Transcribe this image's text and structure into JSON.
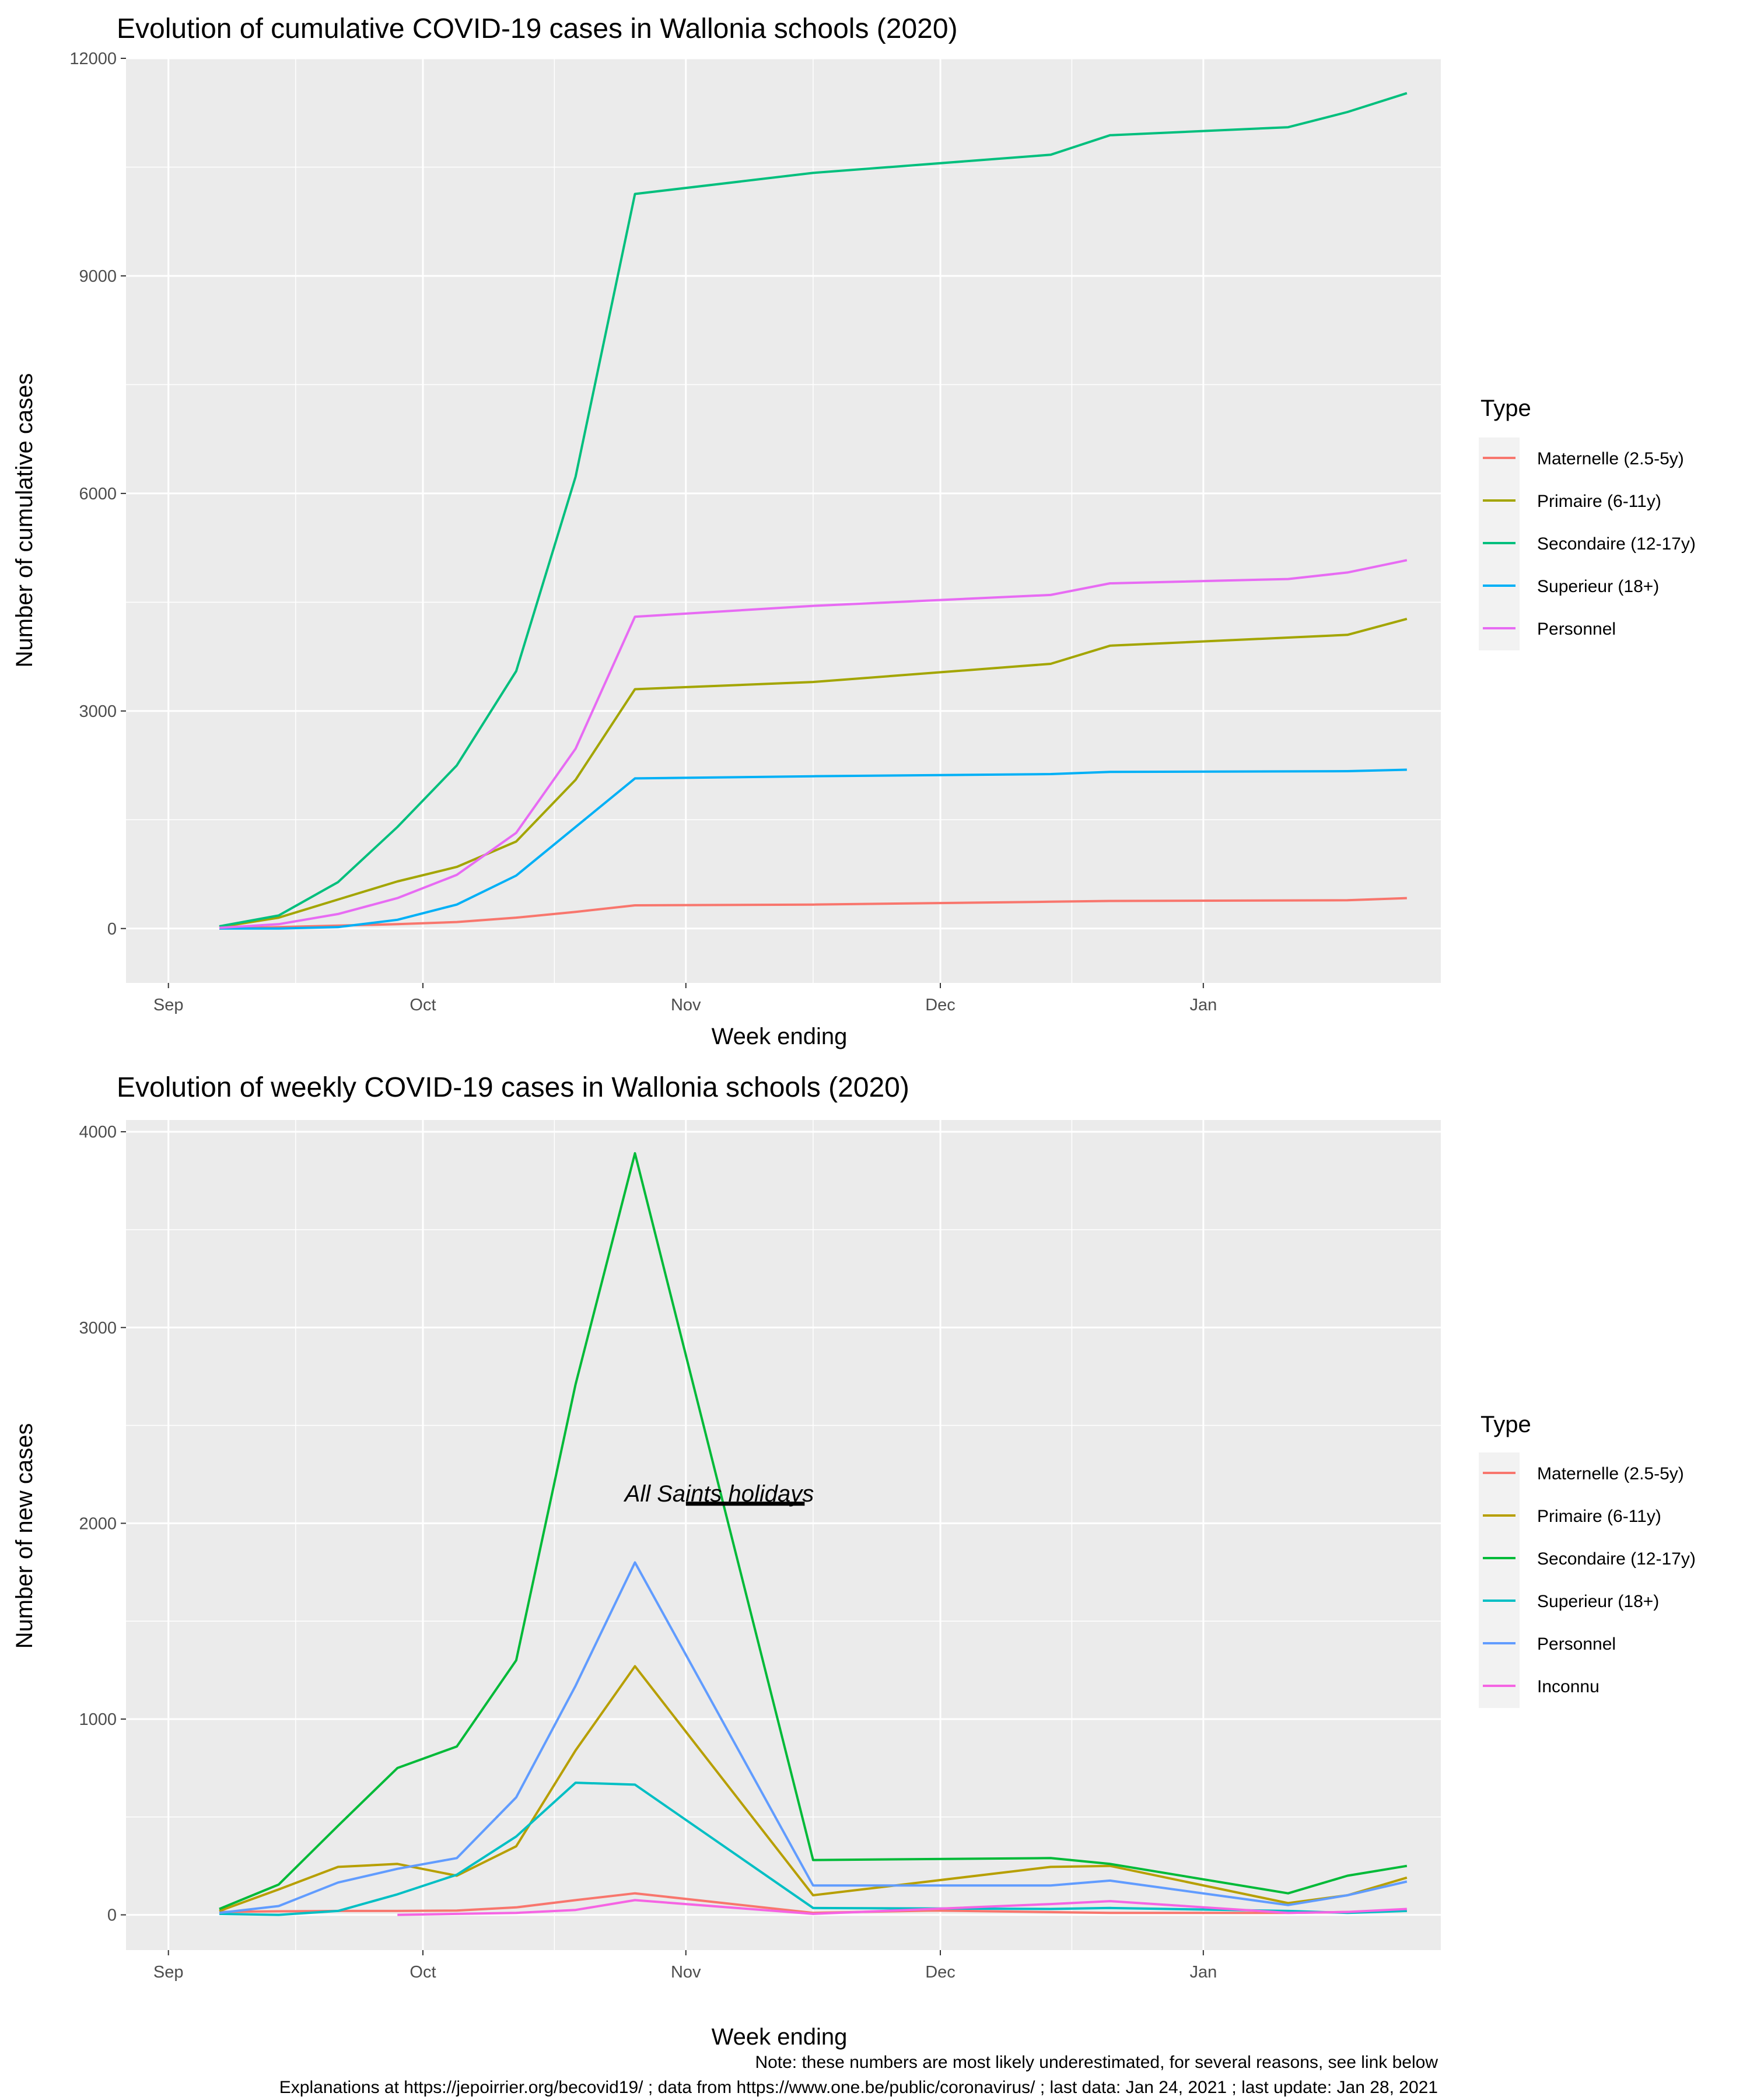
{
  "chart_data": [
    {
      "type": "line",
      "title": "Evolution of cumulative COVID-19 cases in Wallonia schools (2020)",
      "xlabel": "Week ending",
      "ylabel": "Number of cumulative cases",
      "ylim": [
        -750,
        12000
      ],
      "xlim": [
        -5,
        150
      ],
      "y_ticks": [
        0,
        3000,
        6000,
        9000,
        12000
      ],
      "y_tick_labels": [
        "0",
        "3000",
        "6000",
        "9000",
        "12000"
      ],
      "x_ticks": [
        0,
        30,
        61,
        91,
        122
      ],
      "x_tick_labels": [
        "Sep",
        "Oct",
        "Nov",
        "Dec",
        "Jan"
      ],
      "legend_title": "Type",
      "legend_position": "right",
      "series": [
        {
          "name": "Maternelle (2.5-5y)",
          "color": "#F8766D",
          "x": [
            6,
            13,
            20,
            27,
            34,
            41,
            48,
            55,
            76,
            104,
            111,
            139,
            146
          ],
          "y": [
            0,
            20,
            40,
            60,
            90,
            150,
            230,
            320,
            330,
            370,
            380,
            390,
            420
          ]
        },
        {
          "name": "Primaire (6-11y)",
          "color": "#A3A500",
          "x": [
            6,
            13,
            20,
            27,
            34,
            41,
            48,
            55,
            76,
            104,
            111,
            139,
            146
          ],
          "y": [
            20,
            150,
            400,
            650,
            850,
            1200,
            2050,
            3300,
            3400,
            3650,
            3900,
            4050,
            4270
          ]
        },
        {
          "name": "Secondaire (12-17y)",
          "color": "#00BF7D",
          "x": [
            6,
            13,
            20,
            27,
            34,
            41,
            48,
            55,
            76,
            104,
            111,
            132,
            139,
            146
          ],
          "y": [
            30,
            180,
            640,
            1400,
            2250,
            3550,
            6230,
            10130,
            10420,
            10670,
            10940,
            11050,
            11260,
            11520
          ]
        },
        {
          "name": "Superieur (18+)",
          "color": "#00B0F6",
          "x": [
            6,
            13,
            20,
            27,
            34,
            41,
            48,
            55,
            76,
            104,
            111,
            139,
            146
          ],
          "y": [
            0,
            0,
            20,
            120,
            330,
            730,
            1400,
            2070,
            2100,
            2130,
            2160,
            2170,
            2190
          ]
        },
        {
          "name": "Personnel",
          "color": "#E76BF3",
          "x": [
            6,
            13,
            20,
            27,
            34,
            41,
            48,
            55,
            76,
            104,
            111,
            132,
            139,
            146
          ],
          "y": [
            10,
            60,
            200,
            420,
            740,
            1320,
            2480,
            4300,
            4450,
            4600,
            4760,
            4820,
            4910,
            5080
          ]
        }
      ]
    },
    {
      "type": "line",
      "title": "Evolution of weekly COVID-19 cases in Wallonia schools (2020)",
      "xlabel": "Week ending",
      "ylabel": "Number of new cases",
      "ylim": [
        -180,
        4060
      ],
      "xlim": [
        -5,
        150
      ],
      "y_ticks": [
        0,
        1000,
        2000,
        3000,
        4000
      ],
      "y_tick_labels": [
        "0",
        "1000",
        "2000",
        "3000",
        "4000"
      ],
      "x_ticks": [
        0,
        30,
        61,
        91,
        122
      ],
      "x_tick_labels": [
        "Sep",
        "Oct",
        "Nov",
        "Dec",
        "Jan"
      ],
      "legend_title": "Type",
      "legend_position": "right",
      "annotation": {
        "text": "All Saints holidays",
        "x_start": 61,
        "x_end": 75,
        "y": 2100
      },
      "series": [
        {
          "name": "Maternelle (2.5-5y)",
          "color": "#F8766D",
          "x": [
            6,
            13,
            20,
            27,
            34,
            41,
            48,
            55,
            76,
            90,
            111,
            132,
            139,
            146
          ],
          "y": [
            15,
            18,
            20,
            20,
            22,
            38,
            75,
            110,
            10,
            22,
            10,
            10,
            15,
            20
          ]
        },
        {
          "name": "Primaire (6-11y)",
          "color": "#B79F00",
          "x": [
            6,
            13,
            20,
            27,
            34,
            41,
            48,
            55,
            76,
            104,
            111,
            132,
            139,
            146
          ],
          "y": [
            20,
            130,
            245,
            260,
            200,
            350,
            840,
            1270,
            100,
            245,
            250,
            60,
            100,
            190
          ]
        },
        {
          "name": "Secondaire (12-17y)",
          "color": "#00BA38",
          "x": [
            6,
            13,
            20,
            27,
            34,
            41,
            48,
            55,
            76,
            104,
            111,
            132,
            139,
            146
          ],
          "y": [
            30,
            155,
            455,
            750,
            860,
            1300,
            2710,
            3890,
            280,
            290,
            260,
            110,
            200,
            250
          ]
        },
        {
          "name": "Superieur (18+)",
          "color": "#00BFC4",
          "x": [
            6,
            13,
            20,
            27,
            34,
            41,
            48,
            55,
            76,
            104,
            111,
            132,
            139,
            146
          ],
          "y": [
            5,
            0,
            20,
            105,
            205,
            400,
            675,
            665,
            35,
            30,
            35,
            20,
            10,
            20
          ]
        },
        {
          "name": "Personnel",
          "color": "#619CFF",
          "x": [
            6,
            13,
            20,
            27,
            34,
            41,
            48,
            55,
            76,
            104,
            111,
            132,
            139,
            146
          ],
          "y": [
            10,
            45,
            165,
            235,
            290,
            600,
            1170,
            1800,
            150,
            150,
            175,
            50,
            100,
            170
          ]
        },
        {
          "name": "Inconnu",
          "color": "#F564E3",
          "x": [
            27,
            34,
            41,
            48,
            55,
            76,
            104,
            111,
            132,
            139,
            146
          ],
          "y": [
            0,
            5,
            10,
            25,
            75,
            5,
            55,
            70,
            10,
            15,
            30
          ]
        }
      ]
    }
  ],
  "footer": {
    "note": "Note: these numbers are most likely underestimated, for several reasons, see link below",
    "sources": "Explanations at https://jepoirrier.org/becovid19/ ; data from https://www.one.be/public/coronavirus/ ; last data: Jan 24, 2021  ; last update: Jan 28, 2021"
  }
}
